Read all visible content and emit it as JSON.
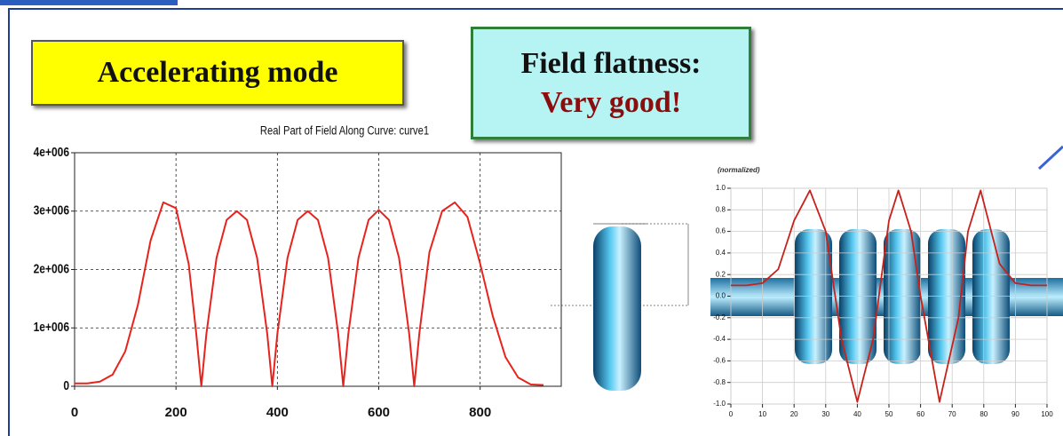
{
  "labels": {
    "mode": "Accelerating mode",
    "flatness_title": "Field flatness:",
    "flatness_value": "Very good!"
  },
  "chart_data": [
    {
      "type": "line",
      "title": "Real Part of Field Along Curve: curve1",
      "color": "#e8231c",
      "grid": true,
      "x": [
        0,
        25,
        50,
        75,
        100,
        125,
        150,
        175,
        200,
        225,
        240,
        250,
        260,
        280,
        300,
        320,
        340,
        360,
        380,
        390,
        400,
        420,
        440,
        460,
        480,
        500,
        520,
        530,
        540,
        560,
        580,
        600,
        620,
        640,
        660,
        670,
        680,
        700,
        725,
        750,
        775,
        800,
        825,
        850,
        875,
        900,
        925
      ],
      "values": [
        50000,
        50000,
        80000,
        200000,
        600000,
        1400000,
        2500000,
        3150000,
        3050000,
        2100000,
        900000,
        0,
        900000,
        2200000,
        2850000,
        3000000,
        2850000,
        2200000,
        900000,
        0,
        900000,
        2200000,
        2850000,
        3000000,
        2850000,
        2200000,
        900000,
        0,
        900000,
        2200000,
        2850000,
        3020000,
        2850000,
        2200000,
        900000,
        0,
        900000,
        2300000,
        3000000,
        3150000,
        2900000,
        2100000,
        1200000,
        500000,
        150000,
        30000,
        20000
      ],
      "xlim": [
        0,
        960
      ],
      "xticks": [
        0,
        200,
        400,
        600,
        800
      ],
      "ylim": [
        0,
        4000000
      ],
      "yticks": [
        0,
        {
          "value": 1000000,
          "label": "1e+006"
        },
        {
          "value": 2000000,
          "label": "2e+006"
        },
        {
          "value": 3000000,
          "label": "3e+006"
        },
        {
          "value": 4000000,
          "label": "4e+006"
        }
      ]
    },
    {
      "type": "line",
      "y_label": "(normalized)",
      "color": "#c8201a",
      "grid": true,
      "x": [
        0,
        5,
        10,
        15,
        20,
        25,
        30,
        35,
        40,
        45,
        50,
        53,
        57,
        60,
        66,
        72,
        75,
        79,
        85,
        90,
        95,
        100
      ],
      "values": [
        0.1,
        0.1,
        0.12,
        0.25,
        0.7,
        0.98,
        0.6,
        -0.4,
        -0.98,
        -0.4,
        0.7,
        0.98,
        0.6,
        0,
        -0.98,
        -0.2,
        0.6,
        0.98,
        0.3,
        0.12,
        0.1,
        0.1
      ],
      "xlim": [
        0,
        100
      ],
      "xticks": [
        0,
        10,
        20,
        30,
        40,
        50,
        60,
        70,
        80,
        90,
        100
      ],
      "ylim": [
        -1,
        1
      ],
      "yticks": [
        {
          "value": -1,
          "label": "-1.0"
        },
        -0.8,
        -0.6,
        -0.4,
        -0.2,
        {
          "value": 0,
          "label": "0.0"
        },
        0.2,
        0.4,
        0.6,
        0.8,
        {
          "value": 1,
          "label": "1.0"
        }
      ]
    }
  ]
}
